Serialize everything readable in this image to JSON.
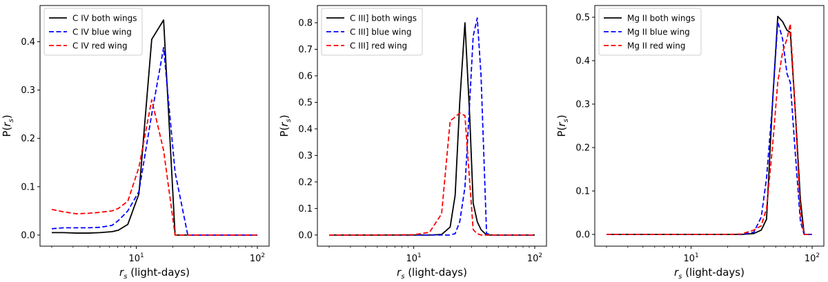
{
  "chart_data": [
    {
      "type": "line",
      "xlabel": "r_s (light-days)",
      "ylabel": "P(r_s)",
      "x_scale": "log",
      "xlim": [
        1.6,
        125
      ],
      "ylim": [
        -0.023,
        0.475
      ],
      "x_ticks": [
        10,
        100
      ],
      "x_tick_labels": [
        "10^1",
        "10^2"
      ],
      "y_ticks": [
        0.0,
        0.1,
        0.2,
        0.3,
        0.4
      ],
      "y_tick_labels": [
        "0.0",
        "0.1",
        "0.2",
        "0.3",
        "0.4"
      ],
      "legend_position": "top-left",
      "grid": false,
      "x": [
        2.0,
        2.5,
        3.2,
        4.0,
        5.0,
        6.3,
        7.1,
        8.5,
        10.5,
        13.4,
        16.8,
        20.9,
        26.6,
        33.7,
        42.9,
        54.6,
        69.4,
        88.2,
        100.0
      ],
      "series": [
        {
          "name": "C IV both wings",
          "color": "#000000",
          "dash": "solid",
          "values": [
            0.005,
            0.005,
            0.004,
            0.004,
            0.005,
            0.007,
            0.01,
            0.022,
            0.085,
            0.405,
            0.445,
            0.0,
            0.0,
            0.0,
            0.0,
            0.0,
            0.0,
            0.0,
            0.0
          ]
        },
        {
          "name": "C IV blue wing",
          "color": "#0000ff",
          "dash": "dashed",
          "values": [
            0.013,
            0.015,
            0.015,
            0.015,
            0.016,
            0.02,
            0.03,
            0.05,
            0.09,
            0.25,
            0.388,
            0.13,
            0.0,
            0.0,
            0.0,
            0.0,
            0.0,
            0.0,
            0.0
          ]
        },
        {
          "name": "C IV red wing",
          "color": "#ff0000",
          "dash": "dashed",
          "values": [
            0.053,
            0.048,
            0.044,
            0.045,
            0.047,
            0.05,
            0.055,
            0.07,
            0.14,
            0.28,
            0.175,
            0.0,
            0.0,
            0.0,
            0.0,
            0.0,
            0.0,
            0.0,
            0.0
          ]
        }
      ]
    },
    {
      "type": "line",
      "xlabel": "r_s (light-days)",
      "ylabel": "P(r_s)",
      "x_scale": "log",
      "xlim": [
        1.6,
        125
      ],
      "ylim": [
        -0.042,
        0.865
      ],
      "x_ticks": [
        10,
        100
      ],
      "x_tick_labels": [
        "10^1",
        "10^2"
      ],
      "y_ticks": [
        0.0,
        0.1,
        0.2,
        0.3,
        0.4,
        0.5,
        0.6,
        0.7,
        0.8
      ],
      "y_tick_labels": [
        "0.0",
        "0.1",
        "0.2",
        "0.3",
        "0.4",
        "0.5",
        "0.6",
        "0.7",
        "0.8"
      ],
      "legend_position": "top-left",
      "grid": false,
      "x": [
        2.0,
        5.0,
        10.0,
        13.5,
        17.0,
        20.0,
        22.0,
        24.0,
        26.5,
        29.0,
        31.0,
        33.5,
        36.0,
        40.0,
        45.0,
        60.0,
        100.0
      ],
      "series": [
        {
          "name": "C III] both wings",
          "color": "#000000",
          "dash": "solid",
          "values": [
            0.0,
            0.0,
            0.0,
            0.0,
            0.002,
            0.03,
            0.15,
            0.5,
            0.8,
            0.45,
            0.12,
            0.05,
            0.02,
            0.0,
            0.0,
            0.0,
            0.0
          ]
        },
        {
          "name": "C III] blue wing",
          "color": "#0000ff",
          "dash": "dashed",
          "values": [
            0.0,
            0.0,
            0.0,
            0.0,
            0.0,
            0.0,
            0.005,
            0.05,
            0.18,
            0.5,
            0.75,
            0.818,
            0.6,
            0.005,
            0.0,
            0.0,
            0.0
          ]
        },
        {
          "name": "C III] red wing",
          "color": "#ff0000",
          "dash": "dashed",
          "values": [
            0.0,
            0.0,
            0.001,
            0.01,
            0.08,
            0.43,
            0.445,
            0.46,
            0.45,
            0.2,
            0.02,
            0.005,
            0.0,
            0.0,
            0.0,
            0.0,
            0.0
          ]
        }
      ]
    },
    {
      "type": "line",
      "xlabel": "r_s (light-days)",
      "ylabel": "P(r_s)",
      "x_scale": "log",
      "xlim": [
        1.6,
        125
      ],
      "ylim": [
        -0.027,
        0.527
      ],
      "x_ticks": [
        10,
        100
      ],
      "x_tick_labels": [
        "10^1",
        "10^2"
      ],
      "y_ticks": [
        0.0,
        0.1,
        0.2,
        0.3,
        0.4,
        0.5
      ],
      "y_tick_labels": [
        "0.0",
        "0.1",
        "0.2",
        "0.3",
        "0.4",
        "0.5"
      ],
      "legend_position": "top-left",
      "grid": false,
      "x": [
        2.0,
        5.0,
        10.0,
        20.0,
        26.0,
        33.0,
        38.0,
        42.0,
        47.0,
        52.0,
        57.0,
        62.0,
        66.0,
        72.0,
        80.0,
        86.0,
        100.0
      ],
      "series": [
        {
          "name": "Mg II both wings",
          "color": "#000000",
          "dash": "solid",
          "values": [
            0.0,
            0.0,
            0.0,
            0.0,
            0.0,
            0.002,
            0.01,
            0.035,
            0.3,
            0.502,
            0.49,
            0.47,
            0.465,
            0.3,
            0.08,
            0.0,
            0.0
          ]
        },
        {
          "name": "Mg II blue wing",
          "color": "#0000ff",
          "dash": "dashed",
          "values": [
            0.0,
            0.0,
            0.0,
            0.0,
            0.0,
            0.005,
            0.04,
            0.13,
            0.3,
            0.49,
            0.45,
            0.37,
            0.35,
            0.2,
            0.03,
            0.0,
            0.0
          ]
        },
        {
          "name": "Mg II red wing",
          "color": "#ff0000",
          "dash": "dashed",
          "values": [
            0.0,
            0.0,
            0.0,
            0.0,
            0.001,
            0.01,
            0.02,
            0.06,
            0.2,
            0.35,
            0.42,
            0.45,
            0.485,
            0.3,
            0.05,
            0.0,
            0.0
          ]
        }
      ]
    }
  ]
}
